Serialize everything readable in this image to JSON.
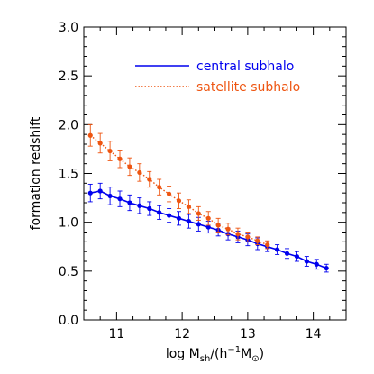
{
  "chart_data": {
    "type": "line",
    "xlabel_main": "log M",
    "xlabel_sub": "sh",
    "xlabel_paren_open": "/(h",
    "xlabel_sup": "−1",
    "xlabel_m": "M",
    "xlabel_sun": "⊙",
    "xlabel_paren_close": ")",
    "ylabel": "formation redshift",
    "xlim": [
      10.5,
      14.5
    ],
    "ylim": [
      0.0,
      3.0
    ],
    "x_ticks": [
      11,
      12,
      13,
      14
    ],
    "x_tick_labels": [
      "11",
      "12",
      "13",
      "14"
    ],
    "y_ticks": [
      0.0,
      0.5,
      1.0,
      1.5,
      2.0,
      2.5,
      3.0
    ],
    "y_tick_labels": [
      "0.0",
      "0.5",
      "1.0",
      "1.5",
      "2.0",
      "2.5",
      "3.0"
    ],
    "legend_placement": "top-right",
    "series": [
      {
        "name": "central subhalo",
        "color": "#0000ee",
        "line_style": "solid",
        "x": [
          10.6,
          10.75,
          10.9,
          11.05,
          11.2,
          11.35,
          11.5,
          11.65,
          11.8,
          11.95,
          12.1,
          12.25,
          12.4,
          12.55,
          12.7,
          12.85,
          13.0,
          13.15,
          13.3,
          13.45,
          13.6,
          13.75,
          13.9,
          14.05,
          14.2
        ],
        "y": [
          1.3,
          1.32,
          1.27,
          1.24,
          1.2,
          1.17,
          1.14,
          1.1,
          1.07,
          1.04,
          1.01,
          0.98,
          0.95,
          0.92,
          0.88,
          0.85,
          0.82,
          0.78,
          0.75,
          0.72,
          0.68,
          0.65,
          0.6,
          0.57,
          0.53
        ],
        "err": [
          0.09,
          0.08,
          0.09,
          0.08,
          0.08,
          0.08,
          0.07,
          0.07,
          0.07,
          0.07,
          0.07,
          0.07,
          0.06,
          0.06,
          0.06,
          0.06,
          0.06,
          0.06,
          0.05,
          0.05,
          0.05,
          0.05,
          0.05,
          0.05,
          0.04
        ]
      },
      {
        "name": "satellite subhalo",
        "color": "#ee5511",
        "line_style": "dotted",
        "x": [
          10.6,
          10.75,
          10.9,
          11.05,
          11.2,
          11.35,
          11.5,
          11.65,
          11.8,
          11.95,
          12.1,
          12.25,
          12.4,
          12.55,
          12.7,
          12.85,
          13.0,
          13.15,
          13.3
        ],
        "y": [
          1.89,
          1.81,
          1.73,
          1.65,
          1.57,
          1.51,
          1.44,
          1.36,
          1.29,
          1.22,
          1.16,
          1.09,
          1.04,
          0.97,
          0.93,
          0.88,
          0.85,
          0.81,
          0.77
        ],
        "err": [
          0.11,
          0.1,
          0.1,
          0.09,
          0.09,
          0.09,
          0.08,
          0.08,
          0.08,
          0.08,
          0.07,
          0.07,
          0.07,
          0.07,
          0.06,
          0.06,
          0.05,
          0.04,
          0.04
        ]
      }
    ]
  }
}
